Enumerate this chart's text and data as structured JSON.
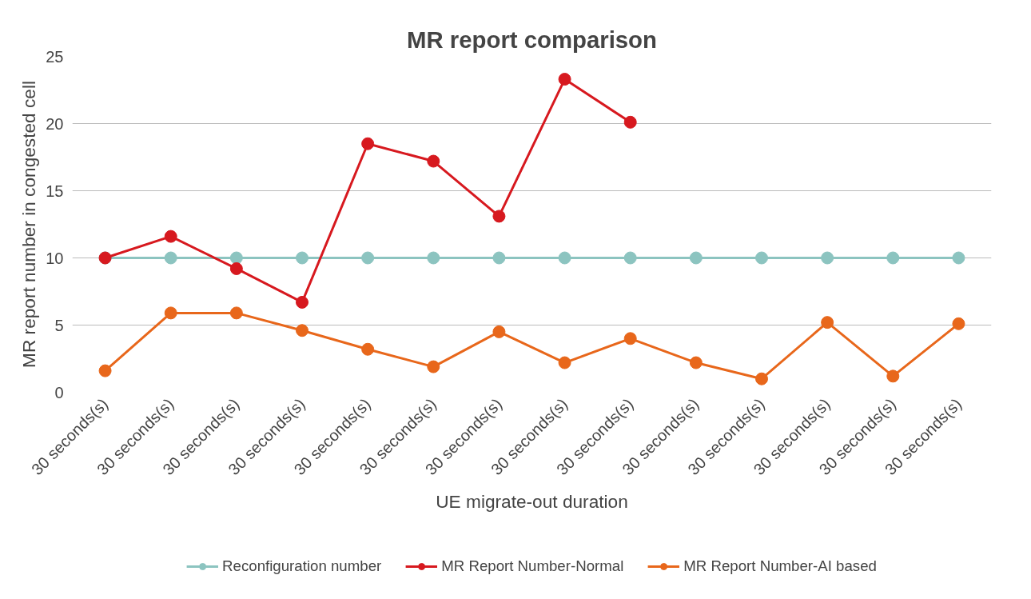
{
  "chart_data": {
    "type": "line",
    "title": "MR report comparison",
    "xlabel": "UE migrate-out duration",
    "ylabel": "MR report number in congested cell",
    "categories": [
      "30 seconds(s)",
      "30 seconds(s)",
      "30 seconds(s)",
      "30 seconds(s)",
      "30 seconds(s)",
      "30 seconds(s)",
      "30 seconds(s)",
      "30 seconds(s)",
      "30 seconds(s)",
      "30 seconds(s)",
      "30 seconds(s)",
      "30 seconds(s)",
      "30 seconds(s)",
      "30 seconds(s)"
    ],
    "series": [
      {
        "name": "Reconfiguration number",
        "color": "#8cc4c0",
        "values": [
          10,
          10,
          10,
          10,
          10,
          10,
          10,
          10,
          10,
          10,
          10,
          10,
          10,
          10
        ]
      },
      {
        "name": "MR Report Number-Normal",
        "color": "#d7191f",
        "values": [
          10,
          11.6,
          9.2,
          6.7,
          18.5,
          17.2,
          13.1,
          23.3,
          20.1,
          null,
          null,
          null,
          null,
          null
        ]
      },
      {
        "name": "MR Report Number-AI based",
        "color": "#e8671b",
        "values": [
          1.6,
          5.9,
          5.9,
          4.6,
          3.2,
          1.9,
          4.5,
          2.2,
          4.0,
          2.2,
          1.0,
          5.2,
          1.2,
          5.1
        ]
      }
    ],
    "ylim": [
      0,
      25
    ],
    "yticks": [
      0,
      5,
      10,
      15,
      20,
      25
    ],
    "grid": "y",
    "legend": "bottom",
    "marker": "circle",
    "line_style": "solid"
  }
}
